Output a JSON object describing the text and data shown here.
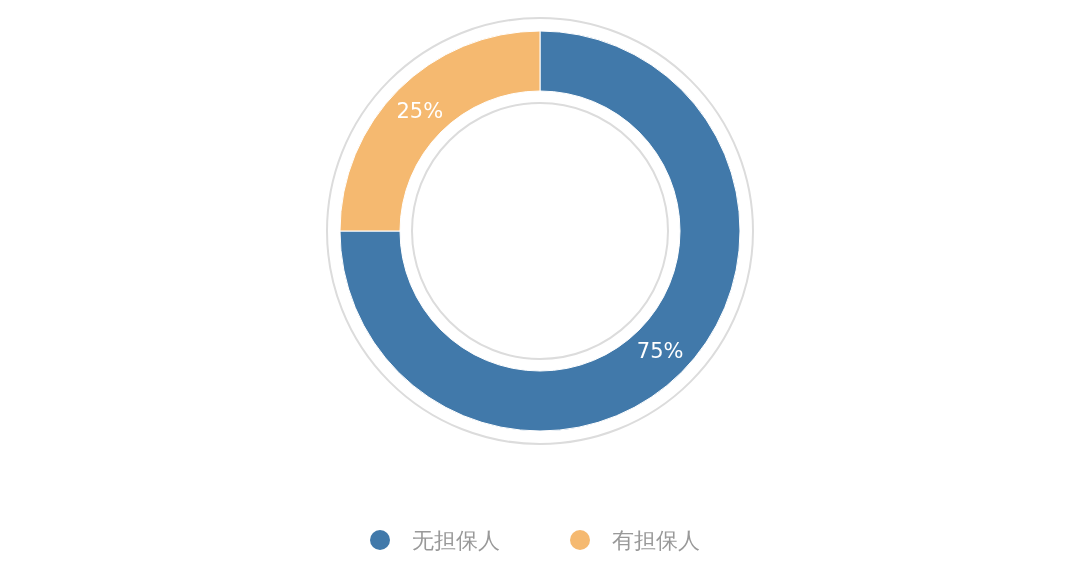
{
  "chart_data": {
    "type": "donut",
    "categories": [
      "无担保人",
      "有担保人"
    ],
    "values": [
      75,
      25
    ],
    "colors": [
      "#4179aa",
      "#f5b970"
    ],
    "value_labels": [
      "75%",
      "25%"
    ],
    "legend": "bottom"
  }
}
